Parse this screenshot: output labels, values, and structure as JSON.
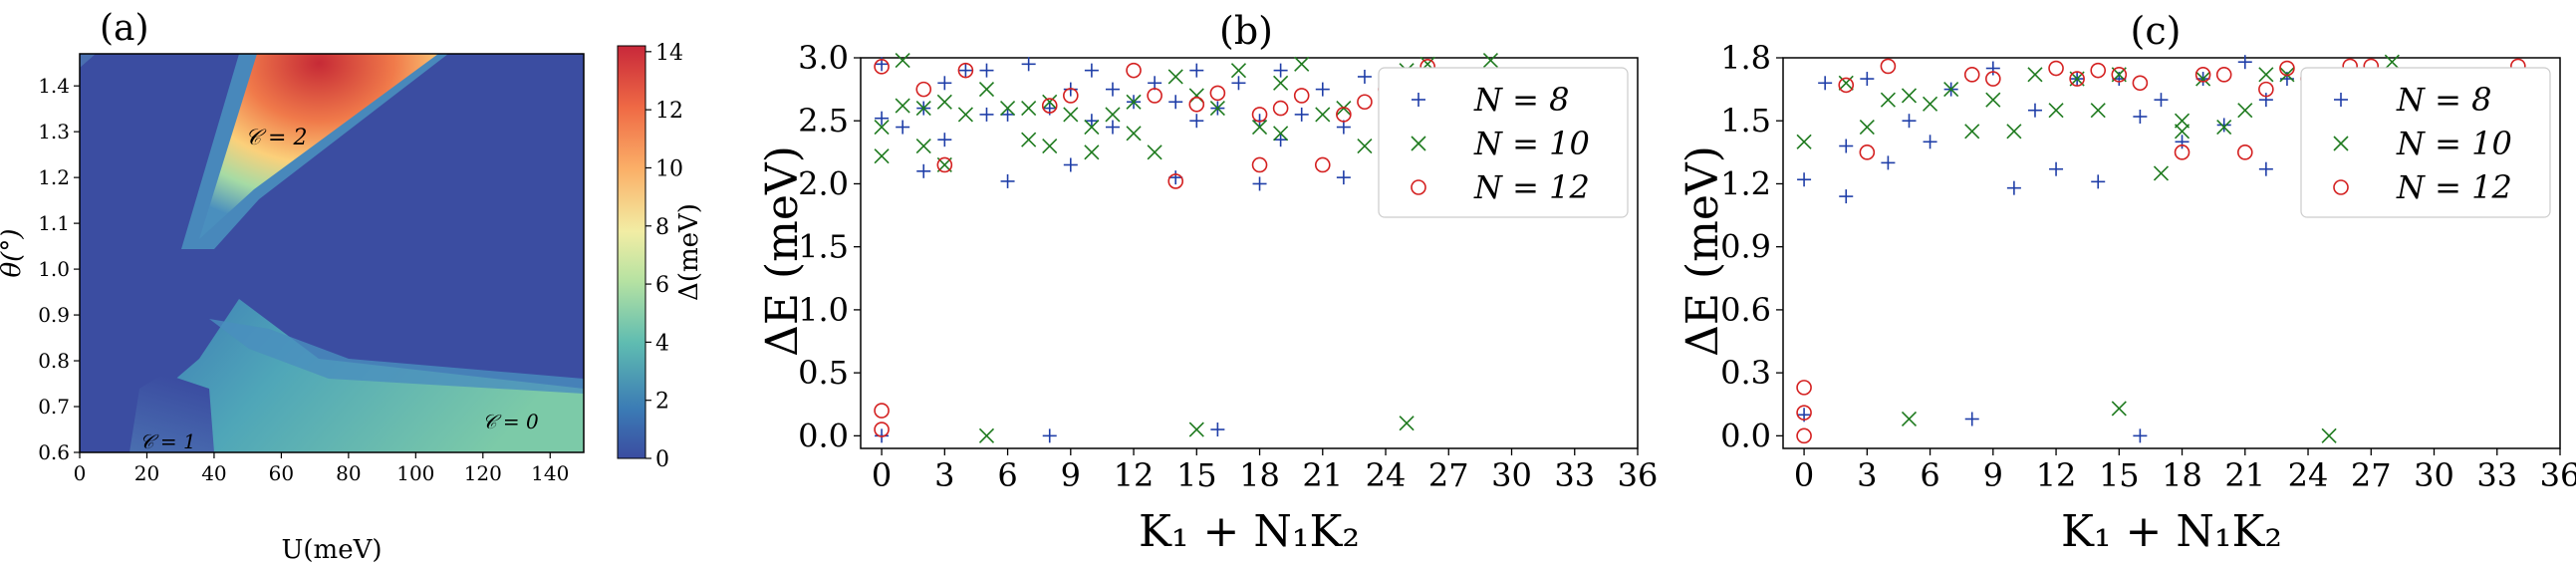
{
  "chart_data": [
    {
      "panel": "(a)",
      "type": "heatmap",
      "xlabel": "U(meV)",
      "ylabel": "θ(°)",
      "xlim": [
        0,
        150
      ],
      "ylim": [
        0.6,
        1.47
      ],
      "xticks": [
        "0",
        "20",
        "40",
        "60",
        "80",
        "100",
        "120",
        "140"
      ],
      "yticks": [
        "0.6",
        "0.7",
        "0.8",
        "0.9",
        "1.0",
        "1.1",
        "1.2",
        "1.3",
        "1.4"
      ],
      "colorbar_label": "Δ(meV)",
      "colorbar_range": [
        0,
        14.2
      ],
      "colorbar_ticks": [
        "0",
        "2",
        "4",
        "6",
        "8",
        "10",
        "12",
        "14"
      ],
      "annotations": [
        "𝒞 = 2",
        "𝒞 = 1",
        "𝒞 = 0"
      ]
    },
    {
      "panel": "(b)",
      "type": "scatter",
      "xlabel": "K₁ + N₁K₂",
      "ylabel": "ΔE (meV)",
      "xlim": [
        -1,
        36
      ],
      "ylim": [
        -0.1,
        3.0
      ],
      "xticks": [
        "0",
        "3",
        "6",
        "9",
        "12",
        "15",
        "18",
        "21",
        "24",
        "27",
        "30",
        "33",
        "36"
      ],
      "yticks": [
        "0.0",
        "0.5",
        "1.0",
        "1.5",
        "2.0",
        "2.5",
        "3.0"
      ],
      "legend": [
        "N = 8",
        "N = 10",
        "N = 12"
      ],
      "series": [
        {
          "name": "N = 8",
          "marker": "+",
          "color": "#1f3ea8",
          "points": [
            [
              0,
              0.0
            ],
            [
              0,
              2.52
            ],
            [
              0,
              2.95
            ],
            [
              1,
              2.45
            ],
            [
              2,
              2.1
            ],
            [
              2,
              2.6
            ],
            [
              3,
              2.35
            ],
            [
              3,
              2.8
            ],
            [
              4,
              2.9
            ],
            [
              5,
              2.9
            ],
            [
              5,
              2.55
            ],
            [
              6,
              2.02
            ],
            [
              6,
              2.55
            ],
            [
              7,
              2.95
            ],
            [
              8,
              0.0
            ],
            [
              8,
              2.6
            ],
            [
              9,
              2.15
            ],
            [
              9,
              2.75
            ],
            [
              10,
              2.5
            ],
            [
              10,
              2.9
            ],
            [
              11,
              2.45
            ],
            [
              11,
              2.75
            ],
            [
              12,
              2.65
            ],
            [
              13,
              2.8
            ],
            [
              14,
              2.05
            ],
            [
              14,
              2.65
            ],
            [
              15,
              2.5
            ],
            [
              15,
              2.9
            ],
            [
              16,
              0.05
            ],
            [
              16,
              2.6
            ],
            [
              17,
              2.8
            ],
            [
              18,
              2.0
            ],
            [
              18,
              2.5
            ],
            [
              19,
              2.35
            ],
            [
              19,
              2.9
            ],
            [
              20,
              2.55
            ],
            [
              21,
              2.75
            ],
            [
              22,
              2.05
            ],
            [
              22,
              2.45
            ],
            [
              23,
              2.85
            ]
          ]
        },
        {
          "name": "N = 10",
          "marker": "x",
          "color": "#1e7a1e",
          "points": [
            [
              0,
              2.22
            ],
            [
              0,
              2.45
            ],
            [
              1,
              2.62
            ],
            [
              1,
              2.98
            ],
            [
              2,
              2.3
            ],
            [
              2,
              2.6
            ],
            [
              3,
              2.15
            ],
            [
              3,
              2.65
            ],
            [
              4,
              2.55
            ],
            [
              5,
              2.75
            ],
            [
              5,
              0.0
            ],
            [
              6,
              2.6
            ],
            [
              7,
              2.35
            ],
            [
              7,
              2.6
            ],
            [
              8,
              2.3
            ],
            [
              8,
              2.65
            ],
            [
              9,
              2.55
            ],
            [
              10,
              2.25
            ],
            [
              10,
              2.45
            ],
            [
              11,
              2.55
            ],
            [
              12,
              2.4
            ],
            [
              12,
              2.65
            ],
            [
              13,
              2.25
            ],
            [
              14,
              2.85
            ],
            [
              15,
              0.05
            ],
            [
              15,
              2.7
            ],
            [
              16,
              2.6
            ],
            [
              17,
              2.9
            ],
            [
              18,
              2.45
            ],
            [
              19,
              2.4
            ],
            [
              19,
              2.8
            ],
            [
              20,
              2.95
            ],
            [
              21,
              2.55
            ],
            [
              22,
              2.6
            ],
            [
              23,
              2.3
            ],
            [
              24,
              2.75
            ],
            [
              25,
              0.1
            ],
            [
              25,
              2.9
            ],
            [
              26,
              2.95
            ],
            [
              29,
              2.98
            ]
          ]
        },
        {
          "name": "N = 12",
          "marker": "o",
          "color": "#d42020",
          "points": [
            [
              0,
              0.05
            ],
            [
              0,
              0.2
            ],
            [
              0,
              2.93
            ],
            [
              2,
              2.75
            ],
            [
              3,
              2.15
            ],
            [
              4,
              2.9
            ],
            [
              8,
              2.62
            ],
            [
              9,
              2.7
            ],
            [
              12,
              2.9
            ],
            [
              13,
              2.7
            ],
            [
              14,
              2.02
            ],
            [
              15,
              2.63
            ],
            [
              16,
              2.72
            ],
            [
              18,
              2.15
            ],
            [
              18,
              2.55
            ],
            [
              19,
              2.6
            ],
            [
              20,
              2.7
            ],
            [
              21,
              2.15
            ],
            [
              22,
              2.55
            ],
            [
              23,
              2.65
            ],
            [
              24,
              2.75
            ],
            [
              26,
              2.93
            ]
          ]
        }
      ]
    },
    {
      "panel": "(c)",
      "type": "scatter",
      "xlabel": "K₁ + N₁K₂",
      "ylabel": "ΔE (meV)",
      "xlim": [
        -1,
        36
      ],
      "ylim": [
        -0.06,
        1.8
      ],
      "xticks": [
        "0",
        "3",
        "6",
        "9",
        "12",
        "15",
        "18",
        "21",
        "24",
        "27",
        "30",
        "33",
        "36"
      ],
      "yticks": [
        "0.0",
        "0.3",
        "0.6",
        "0.9",
        "1.2",
        "1.5",
        "1.8"
      ],
      "legend": [
        "N = 8",
        "N = 10",
        "N = 12"
      ],
      "series": [
        {
          "name": "N = 8",
          "marker": "+",
          "color": "#1f3ea8",
          "points": [
            [
              0,
              0.1
            ],
            [
              0,
              1.22
            ],
            [
              1,
              1.68
            ],
            [
              2,
              1.14
            ],
            [
              2,
              1.38
            ],
            [
              3,
              1.7
            ],
            [
              4,
              1.3
            ],
            [
              5,
              1.5
            ],
            [
              6,
              1.4
            ],
            [
              7,
              1.65
            ],
            [
              8,
              0.08
            ],
            [
              9,
              1.75
            ],
            [
              10,
              1.18
            ],
            [
              11,
              1.55
            ],
            [
              12,
              1.27
            ],
            [
              13,
              1.7
            ],
            [
              14,
              1.21
            ],
            [
              15,
              1.7
            ],
            [
              16,
              1.52
            ],
            [
              16,
              0.0
            ],
            [
              17,
              1.6
            ],
            [
              18,
              1.4
            ],
            [
              19,
              1.7
            ],
            [
              20,
              1.48
            ],
            [
              21,
              1.78
            ],
            [
              22,
              1.27
            ],
            [
              22,
              1.6
            ],
            [
              23,
              1.7
            ]
          ]
        },
        {
          "name": "N = 10",
          "marker": "x",
          "color": "#1e7a1e",
          "points": [
            [
              0,
              1.4
            ],
            [
              2,
              1.68
            ],
            [
              3,
              1.47
            ],
            [
              4,
              1.6
            ],
            [
              5,
              0.08
            ],
            [
              5,
              1.62
            ],
            [
              6,
              1.58
            ],
            [
              7,
              1.65
            ],
            [
              8,
              1.45
            ],
            [
              9,
              1.6
            ],
            [
              10,
              1.45
            ],
            [
              11,
              1.72
            ],
            [
              12,
              1.55
            ],
            [
              13,
              1.7
            ],
            [
              14,
              1.55
            ],
            [
              15,
              0.13
            ],
            [
              15,
              1.72
            ],
            [
              17,
              1.25
            ],
            [
              18,
              1.5
            ],
            [
              18,
              1.45
            ],
            [
              19,
              1.7
            ],
            [
              20,
              1.47
            ],
            [
              21,
              1.55
            ],
            [
              22,
              1.72
            ],
            [
              23,
              1.72
            ],
            [
              25,
              0.0
            ],
            [
              25,
              1.62
            ],
            [
              28,
              1.78
            ]
          ]
        },
        {
          "name": "N = 12",
          "marker": "o",
          "color": "#d42020",
          "points": [
            [
              0,
              0.0
            ],
            [
              0,
              0.11
            ],
            [
              0,
              0.23
            ],
            [
              2,
              1.67
            ],
            [
              3,
              1.35
            ],
            [
              4,
              1.76
            ],
            [
              8,
              1.72
            ],
            [
              9,
              1.7
            ],
            [
              12,
              1.75
            ],
            [
              13,
              1.7
            ],
            [
              14,
              1.74
            ],
            [
              15,
              1.72
            ],
            [
              16,
              1.68
            ],
            [
              18,
              1.35
            ],
            [
              19,
              1.72
            ],
            [
              20,
              1.72
            ],
            [
              21,
              1.35
            ],
            [
              22,
              1.65
            ],
            [
              23,
              1.75
            ],
            [
              24,
              1.7
            ],
            [
              26,
              1.76
            ],
            [
              27,
              1.76
            ],
            [
              34,
              1.76
            ]
          ]
        }
      ]
    }
  ]
}
